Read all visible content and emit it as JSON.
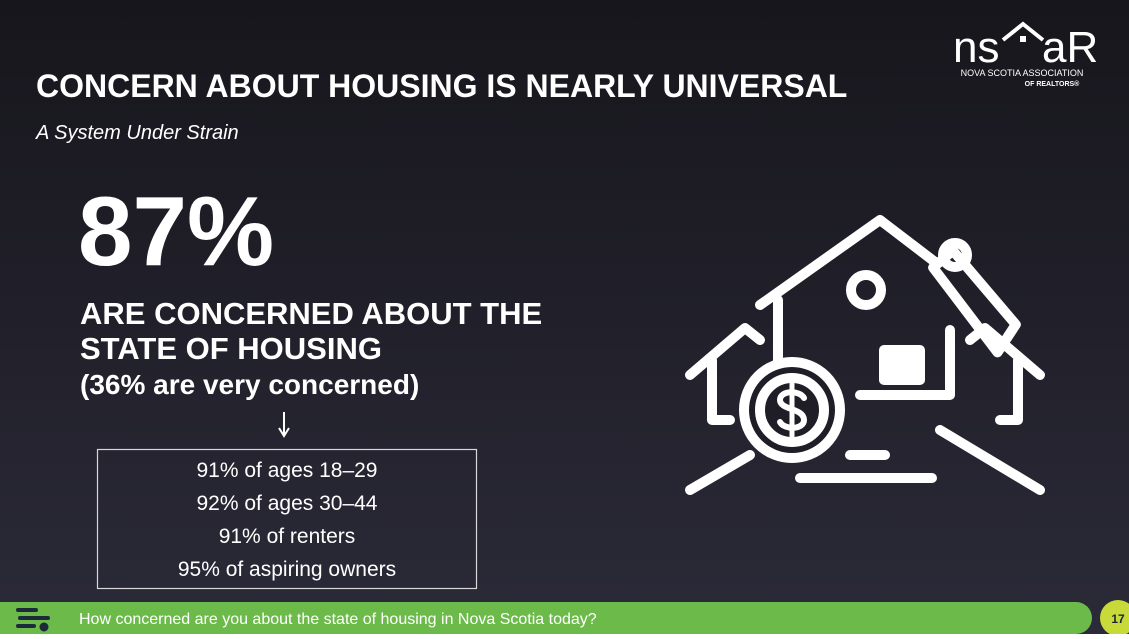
{
  "header": {
    "title": "CONCERN ABOUT HOUSING IS NEARLY UNIVERSAL",
    "subtitle": "A System Under Strain"
  },
  "logo": {
    "mark_left": "ns",
    "mark_right": "aR",
    "line1": "NOVA SCOTIA ASSOCIATION",
    "line2": "OF REALTORS®"
  },
  "stat": {
    "value": "87%",
    "label_lines": [
      "ARE CONCERNED ABOUT THE",
      "STATE OF HOUSING"
    ],
    "note": "(36% are very concerned)"
  },
  "breakdown": [
    "91% of ages 18–29",
    "92% of ages 30–44",
    "91% of renters",
    "95% of aspiring owners"
  ],
  "footer": {
    "question": "How concerned are you about the state of housing in Nova Scotia today?",
    "page": "17"
  }
}
